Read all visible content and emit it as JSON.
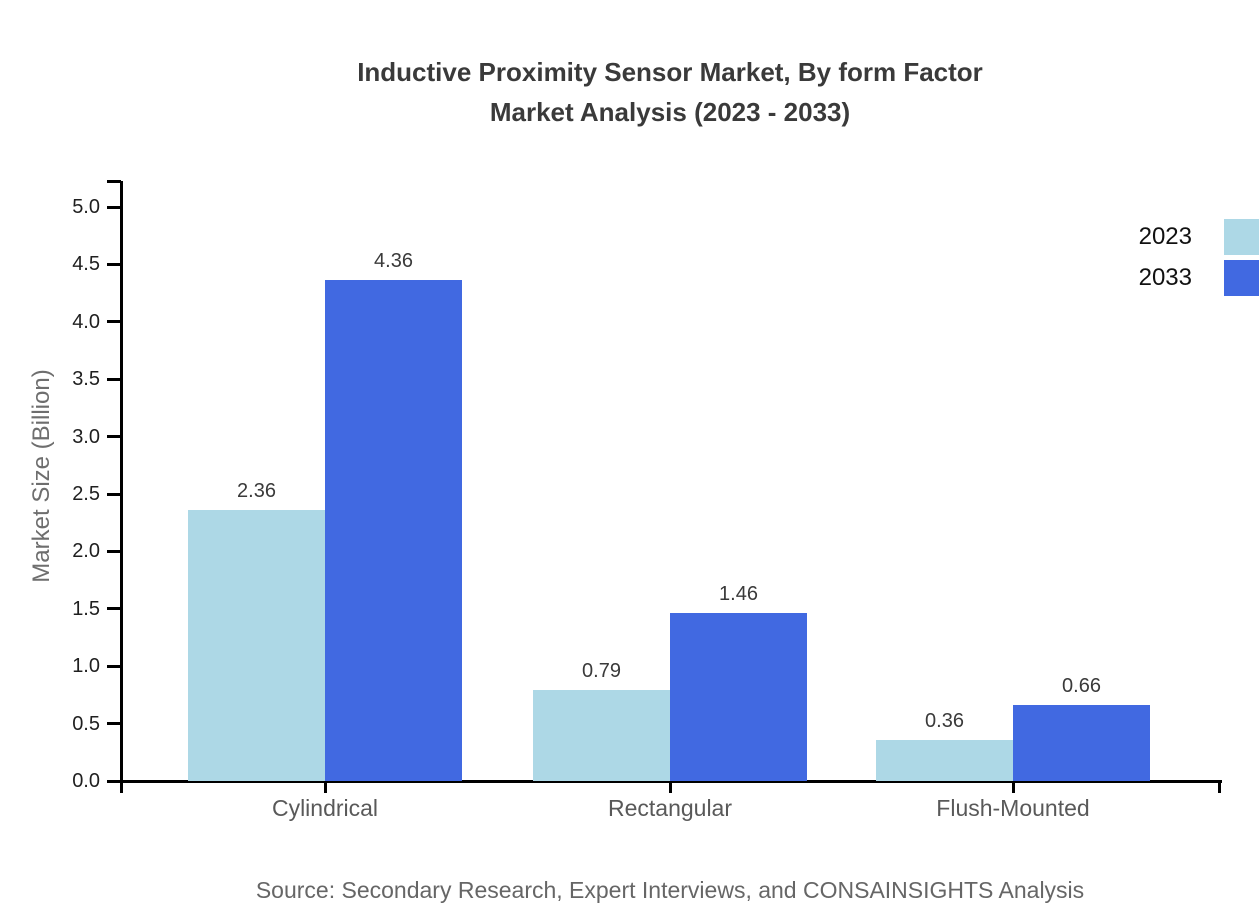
{
  "title": {
    "line1": "Inductive Proximity Sensor Market, By form Factor",
    "line2": "Market Analysis (2023 - 2033)"
  },
  "source": "Source: Secondary Research, Expert Interviews, and CONSAINSIGHTS Analysis",
  "chart_data": {
    "type": "bar",
    "title": "Inductive Proximity Sensor Market, By form Factor Market Analysis (2023 - 2033)",
    "categories": [
      "Cylindrical",
      "Rectangular",
      "Flush-Mounted"
    ],
    "series": [
      {
        "name": "2023",
        "color": "#add8e6",
        "values": [
          2.36,
          0.79,
          0.36
        ]
      },
      {
        "name": "2033",
        "color": "#4169e1",
        "values": [
          4.36,
          1.46,
          0.66
        ]
      }
    ],
    "xlabel": "",
    "ylabel": "Market Size (Billion)",
    "ylim": [
      0,
      5
    ],
    "ytick_step": 0.5,
    "ytick_labels": [
      "0.0",
      "0.5",
      "1.0",
      "1.5",
      "2.0",
      "2.5",
      "3.0",
      "3.5",
      "4.0",
      "4.5",
      "5.0"
    ],
    "grid": false,
    "value_labels": true,
    "value_label_format": "2dp",
    "legend_position": "upper-right",
    "axis_color": "#000000",
    "text_colors": {
      "title": "#3a3a3a",
      "tick_labels": "#1f1f1f",
      "category_labels": "#595959",
      "axis_title": "#6e6e6e",
      "source": "#666666"
    }
  }
}
